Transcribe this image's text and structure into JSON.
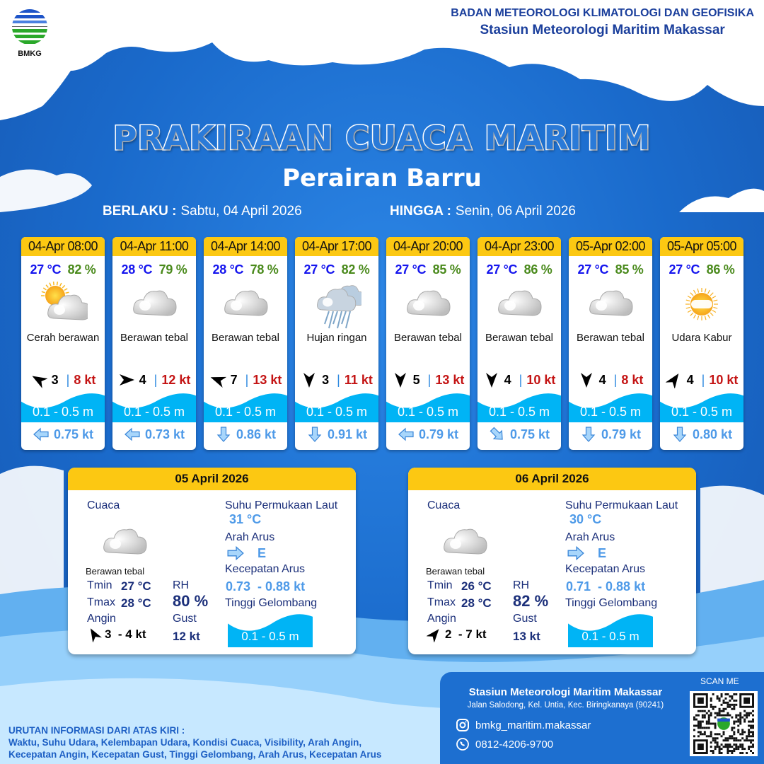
{
  "header": {
    "logo_text": "BMKG",
    "org_line1": "BADAN METEOROLOGI KLIMATOLOGI DAN GEOFISIKA",
    "org_line2": "Stasiun Meteorologi Maritim Makassar"
  },
  "title": "PRAKIRAAN CUACA MARITIM",
  "subtitle": "Perairan Barru",
  "validity": {
    "from_label": "BERLAKU :",
    "from_value": "Sabtu, 04 April 2026",
    "to_label": "HINGGA :",
    "to_value": "Senin, 06 April 2026"
  },
  "colors": {
    "header_yellow": "#fcc812",
    "temp": "#1515ee",
    "humidity": "#4a8a1c",
    "gust": "#c41414",
    "wave": "#00b4f5",
    "current": "#4e9ae8",
    "blue_bg": "#1d6fd0"
  },
  "forecasts": [
    {
      "time": "04-Apr 08:00",
      "temp": "27 °C",
      "rh": "82 %",
      "icon": "partly-cloudy-icon",
      "weather": "Cerah berawan",
      "wind_dir_deg": -60,
      "wind_speed": "3",
      "gust": "8 kt",
      "wave": "0.1 - 0.5 m",
      "current_dir_deg": 270,
      "current_speed": "0.75 kt"
    },
    {
      "time": "04-Apr 11:00",
      "temp": "28 °C",
      "rh": "79 %",
      "icon": "cloud-icon",
      "weather": "Berawan tebal",
      "wind_dir_deg": 90,
      "wind_speed": "4",
      "gust": "12 kt",
      "wave": "0.1 - 0.5 m",
      "current_dir_deg": 270,
      "current_speed": "0.73 kt"
    },
    {
      "time": "04-Apr 14:00",
      "temp": "28 °C",
      "rh": "78 %",
      "icon": "cloud-icon",
      "weather": "Berawan tebal",
      "wind_dir_deg": -70,
      "wind_speed": "7",
      "gust": "13 kt",
      "wave": "0.1 - 0.5 m",
      "current_dir_deg": 180,
      "current_speed": "0.86 kt"
    },
    {
      "time": "04-Apr 17:00",
      "temp": "27 °C",
      "rh": "82 %",
      "icon": "rain-icon",
      "weather": "Hujan ringan",
      "wind_dir_deg": 180,
      "wind_speed": "3",
      "gust": "11 kt",
      "wave": "0.1 - 0.5 m",
      "current_dir_deg": 180,
      "current_speed": "0.91 kt"
    },
    {
      "time": "04-Apr 20:00",
      "temp": "27 °C",
      "rh": "85 %",
      "icon": "cloud-icon",
      "weather": "Berawan tebal",
      "wind_dir_deg": 180,
      "wind_speed": "5",
      "gust": "13 kt",
      "wave": "0.1 - 0.5 m",
      "current_dir_deg": 270,
      "current_speed": "0.79 kt"
    },
    {
      "time": "04-Apr 23:00",
      "temp": "27 °C",
      "rh": "86 %",
      "icon": "cloud-icon",
      "weather": "Berawan tebal",
      "wind_dir_deg": 180,
      "wind_speed": "4",
      "gust": "10 kt",
      "wave": "0.1 - 0.5 m",
      "current_dir_deg": 135,
      "current_speed": "0.75 kt"
    },
    {
      "time": "05-Apr 02:00",
      "temp": "27 °C",
      "rh": "85 %",
      "icon": "cloud-icon",
      "weather": "Berawan tebal",
      "wind_dir_deg": 180,
      "wind_speed": "4",
      "gust": "8 kt",
      "wave": "0.1 - 0.5 m",
      "current_dir_deg": 180,
      "current_speed": "0.79 kt"
    },
    {
      "time": "05-Apr 05:00",
      "temp": "27 °C",
      "rh": "86 %",
      "icon": "haze-icon",
      "weather": "Udara Kabur",
      "wind_dir_deg": 35,
      "wind_speed": "4",
      "gust": "10 kt",
      "wave": "0.1 - 0.5 m",
      "current_dir_deg": 180,
      "current_speed": "0.80 kt"
    }
  ],
  "daily_labels": {
    "weather": "Cuaca",
    "tmin": "Tmin",
    "tmax": "Tmax",
    "wind": "Angin",
    "rh": "RH",
    "gust": "Gust",
    "sst": "Suhu Permukaan Laut",
    "current_dir": "Arah Arus",
    "current_speed": "Kecepatan Arus",
    "wave": "Tinggi Gelombang"
  },
  "daily": [
    {
      "date": "05 April 2026",
      "weather": "Berawan tebal",
      "tmin": "27 °C",
      "tmax": "28 °C",
      "rh": "80 %",
      "wind": "3  - 4 kt",
      "wind_dir_deg": -30,
      "gust": "12 kt",
      "sst": "31 °C",
      "current_dir": "E",
      "current_speed": "0.73  - 0.88 kt",
      "wave": "0.1 - 0.5 m"
    },
    {
      "date": "06 April 2026",
      "weather": "Berawan tebal",
      "tmin": "26 °C",
      "tmax": "28 °C",
      "rh": "82 %",
      "wind": "2  - 7 kt",
      "wind_dir_deg": 40,
      "gust": "13 kt",
      "sst": "30 °C",
      "current_dir": "E",
      "current_speed": "0.71  - 0.88 kt",
      "wave": "0.1 - 0.5 m"
    }
  ],
  "footer": {
    "station": "Stasiun Meteorologi Maritim Makassar",
    "address": "Jalan Salodong, Kel. Untia, Kec. Biringkanaya (90241)",
    "instagram": "bmkg_maritim.makassar",
    "phone": "0812-4206-9700",
    "scan_label": "SCAN ME",
    "legend_title": "URUTAN INFORMASI DARI ATAS KIRI :",
    "legend_line1": "Waktu, Suhu Udara, Kelembapan Udara, Kondisi Cuaca, Visibility, Arah Angin,",
    "legend_line2": "Kecepatan Angin, Kecepatan Gust, Tinggi Gelombang, Arah Arus, Kecepatan Arus"
  }
}
